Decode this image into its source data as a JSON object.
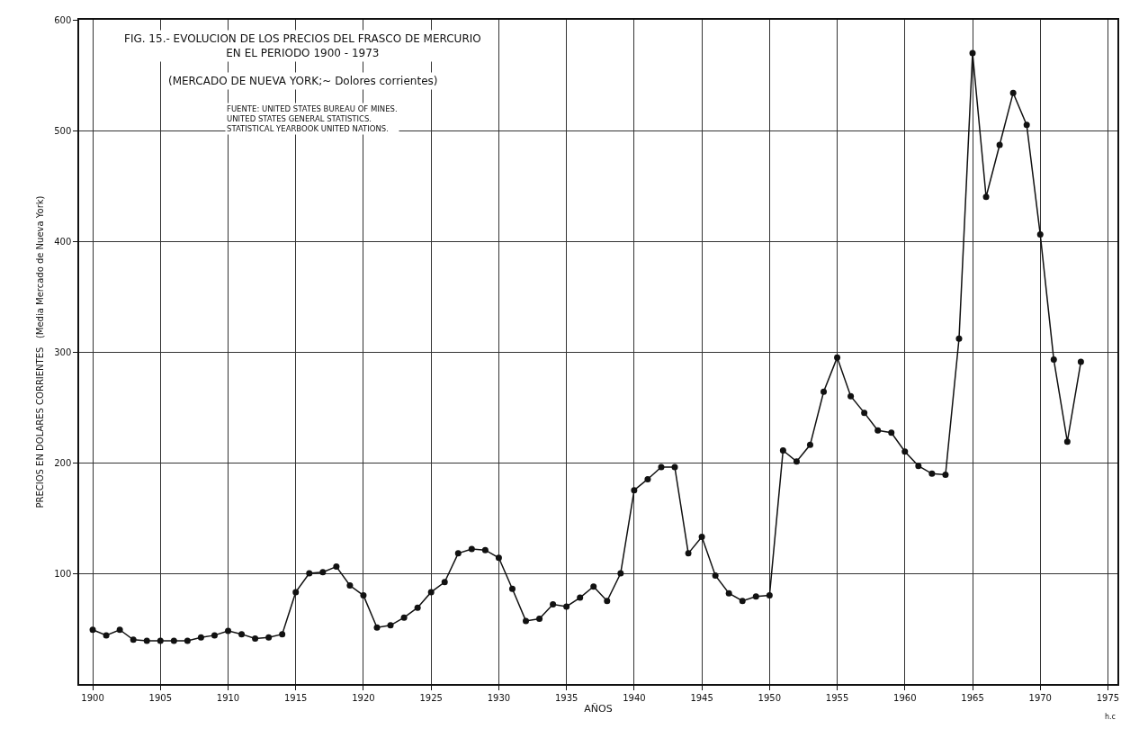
{
  "chart_data": {
    "type": "line",
    "title": "FIG. 15.- EVOLUCION DE LOS PRECIOS DEL FRASCO DE MERCURIO\nEN EL PERIODO 1900 - 1973",
    "subtitle": "(MERCADO DE NUEVA YORK;~ Dolores corrientes)",
    "xlabel": "AÑOS",
    "ylabel": "PRECIOS EN DOLARES CORRIENTES   (Media Mercado de Nueva York)",
    "annotations": [
      "FUENTE: UNITED STATES BUREAU OF MINES.\nUNITED STATES GENERAL STATISTICS.\nSTATISTICAL YEARBOOK UNITED NATIONS.",
      "h.c"
    ],
    "x": [
      1900,
      1901,
      1902,
      1903,
      1904,
      1905,
      1906,
      1907,
      1908,
      1909,
      1910,
      1911,
      1912,
      1913,
      1914,
      1915,
      1916,
      1917,
      1918,
      1919,
      1920,
      1921,
      1922,
      1923,
      1924,
      1925,
      1926,
      1927,
      1928,
      1929,
      1930,
      1931,
      1932,
      1933,
      1934,
      1935,
      1936,
      1937,
      1938,
      1939,
      1940,
      1941,
      1942,
      1943,
      1944,
      1945,
      1946,
      1947,
      1948,
      1949,
      1950,
      1951,
      1952,
      1953,
      1954,
      1955,
      1956,
      1957,
      1958,
      1959,
      1960,
      1961,
      1962,
      1963,
      1964,
      1965,
      1966,
      1967,
      1968,
      1969,
      1970,
      1971,
      1972,
      1973
    ],
    "series": [
      {
        "color": "#111111",
        "values": [
          49,
          44,
          49,
          40,
          39,
          39,
          39,
          39,
          42,
          44,
          48,
          45,
          41,
          42,
          45,
          83,
          100,
          101,
          106,
          89,
          80,
          51,
          53,
          60,
          69,
          83,
          92,
          118,
          122,
          121,
          114,
          86,
          57,
          59,
          72,
          70,
          78,
          88,
          75,
          100,
          175,
          185,
          196,
          196,
          118,
          133,
          98,
          82,
          75,
          79,
          80,
          211,
          201,
          216,
          264,
          295,
          260,
          245,
          229,
          227,
          210,
          197,
          190,
          189,
          312,
          570,
          440,
          487,
          534,
          505,
          406,
          293,
          219,
          291
        ]
      }
    ],
    "xlim": [
      1899,
      1975.7
    ],
    "ylim": [
      0,
      600
    ],
    "xticks": [
      1900,
      1905,
      1910,
      1915,
      1920,
      1925,
      1930,
      1935,
      1940,
      1945,
      1950,
      1955,
      1960,
      1965,
      1970,
      1975
    ],
    "yticks": [
      100,
      200,
      300,
      400,
      500,
      600
    ],
    "grid": true,
    "marker": "circle",
    "line_style": "solid"
  }
}
